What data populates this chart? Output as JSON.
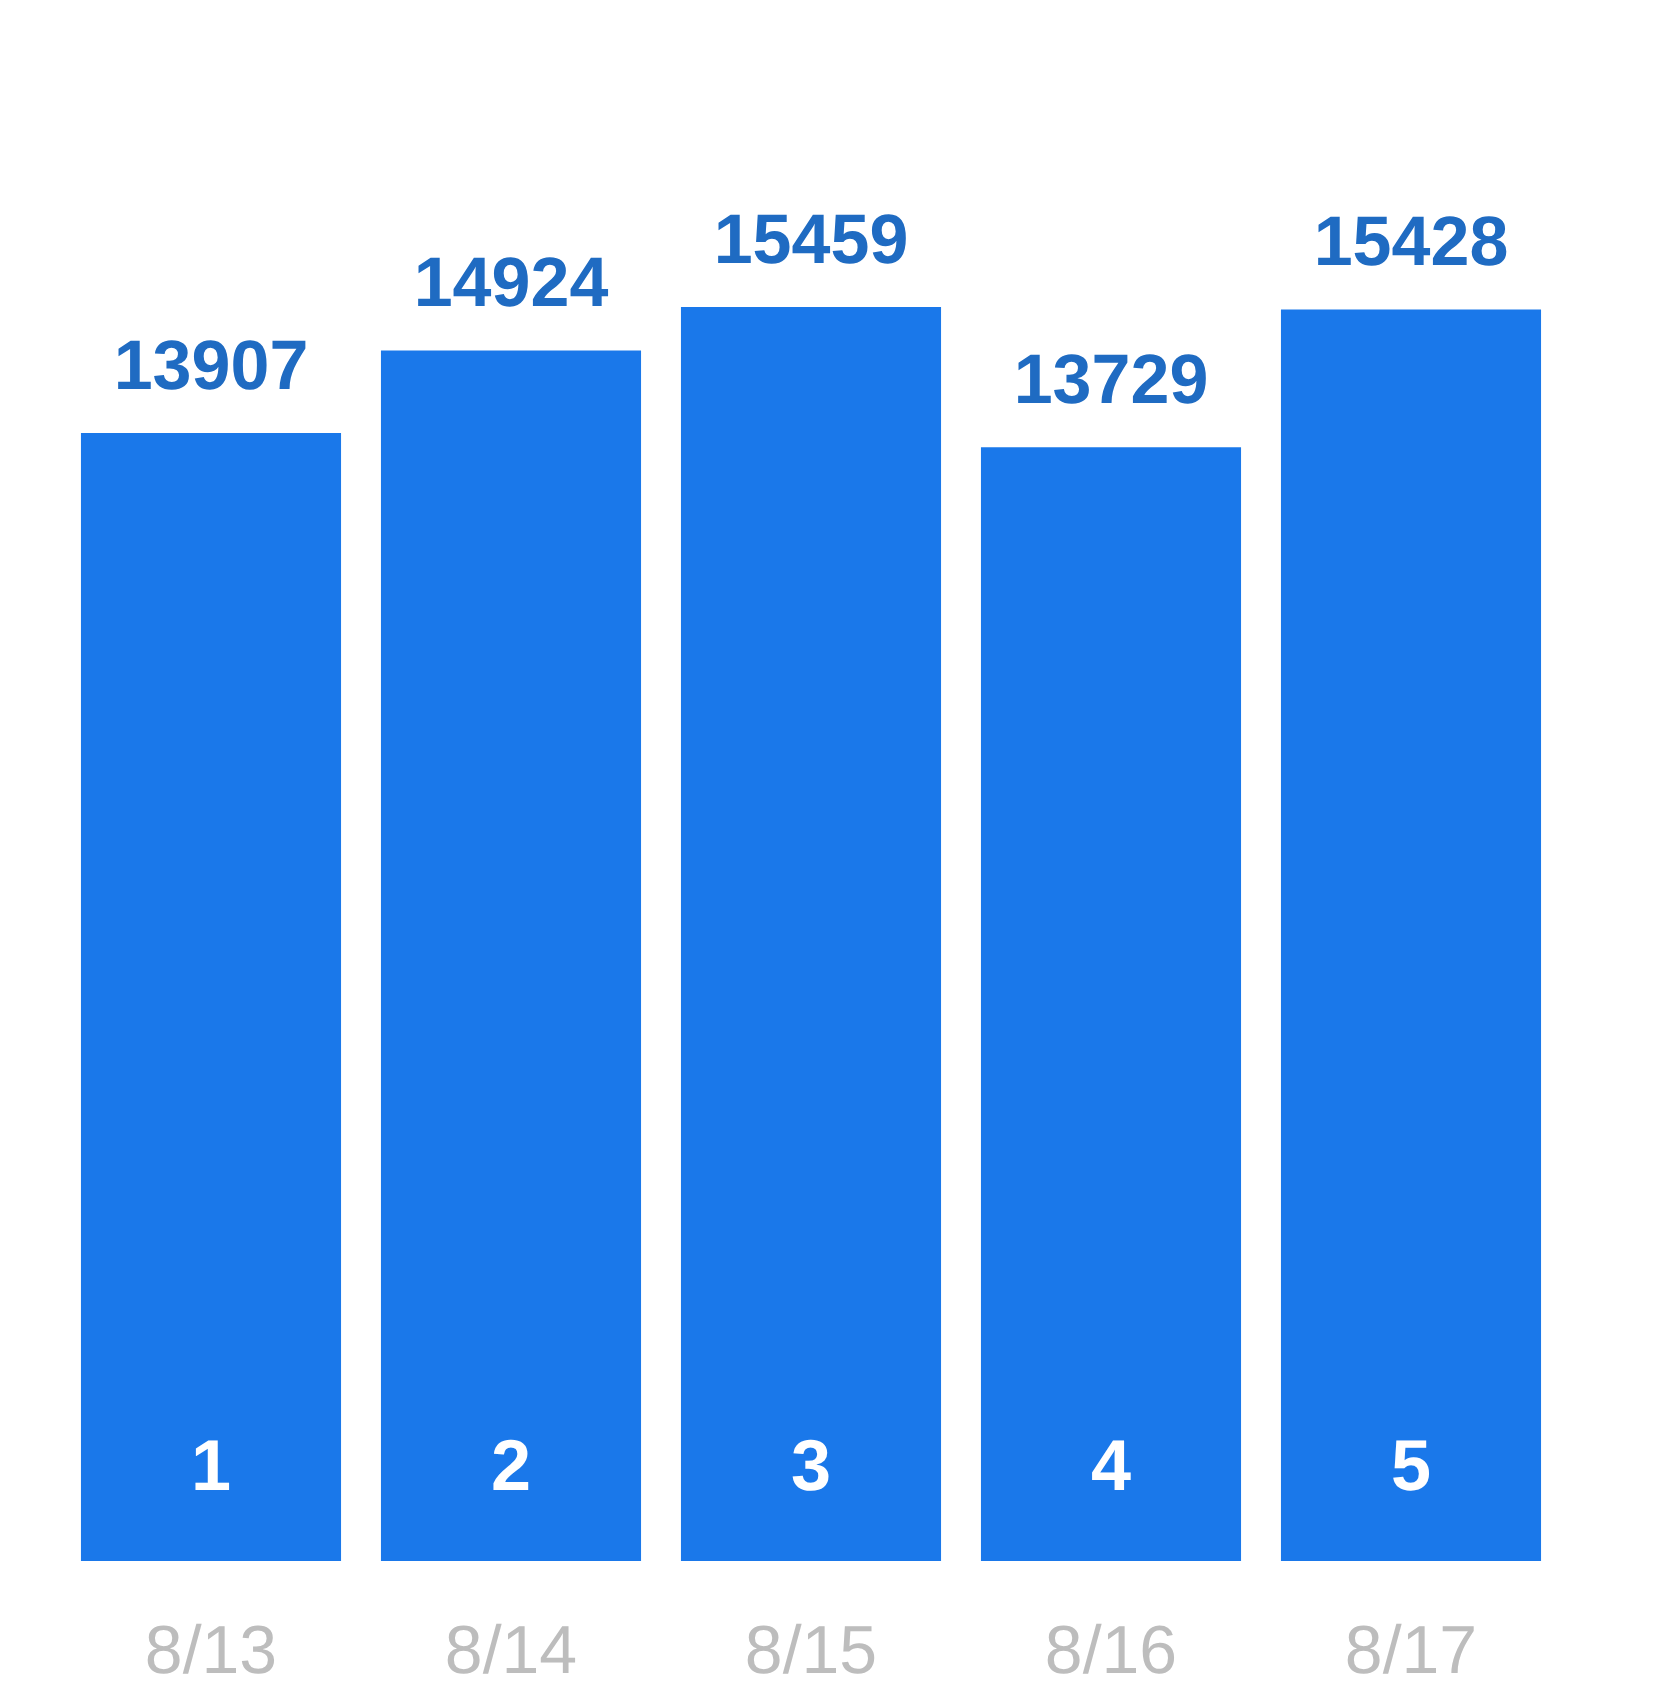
{
  "chart_data": {
    "type": "bar",
    "categories": [
      "8/13",
      "8/14",
      "8/15",
      "8/16",
      "8/17"
    ],
    "values": [
      13907,
      14924,
      15459,
      13729,
      15428
    ],
    "color": "#1a78ea",
    "data_labels": true,
    "annotations": [
      "1",
      "2",
      "3",
      "4",
      "5"
    ]
  }
}
